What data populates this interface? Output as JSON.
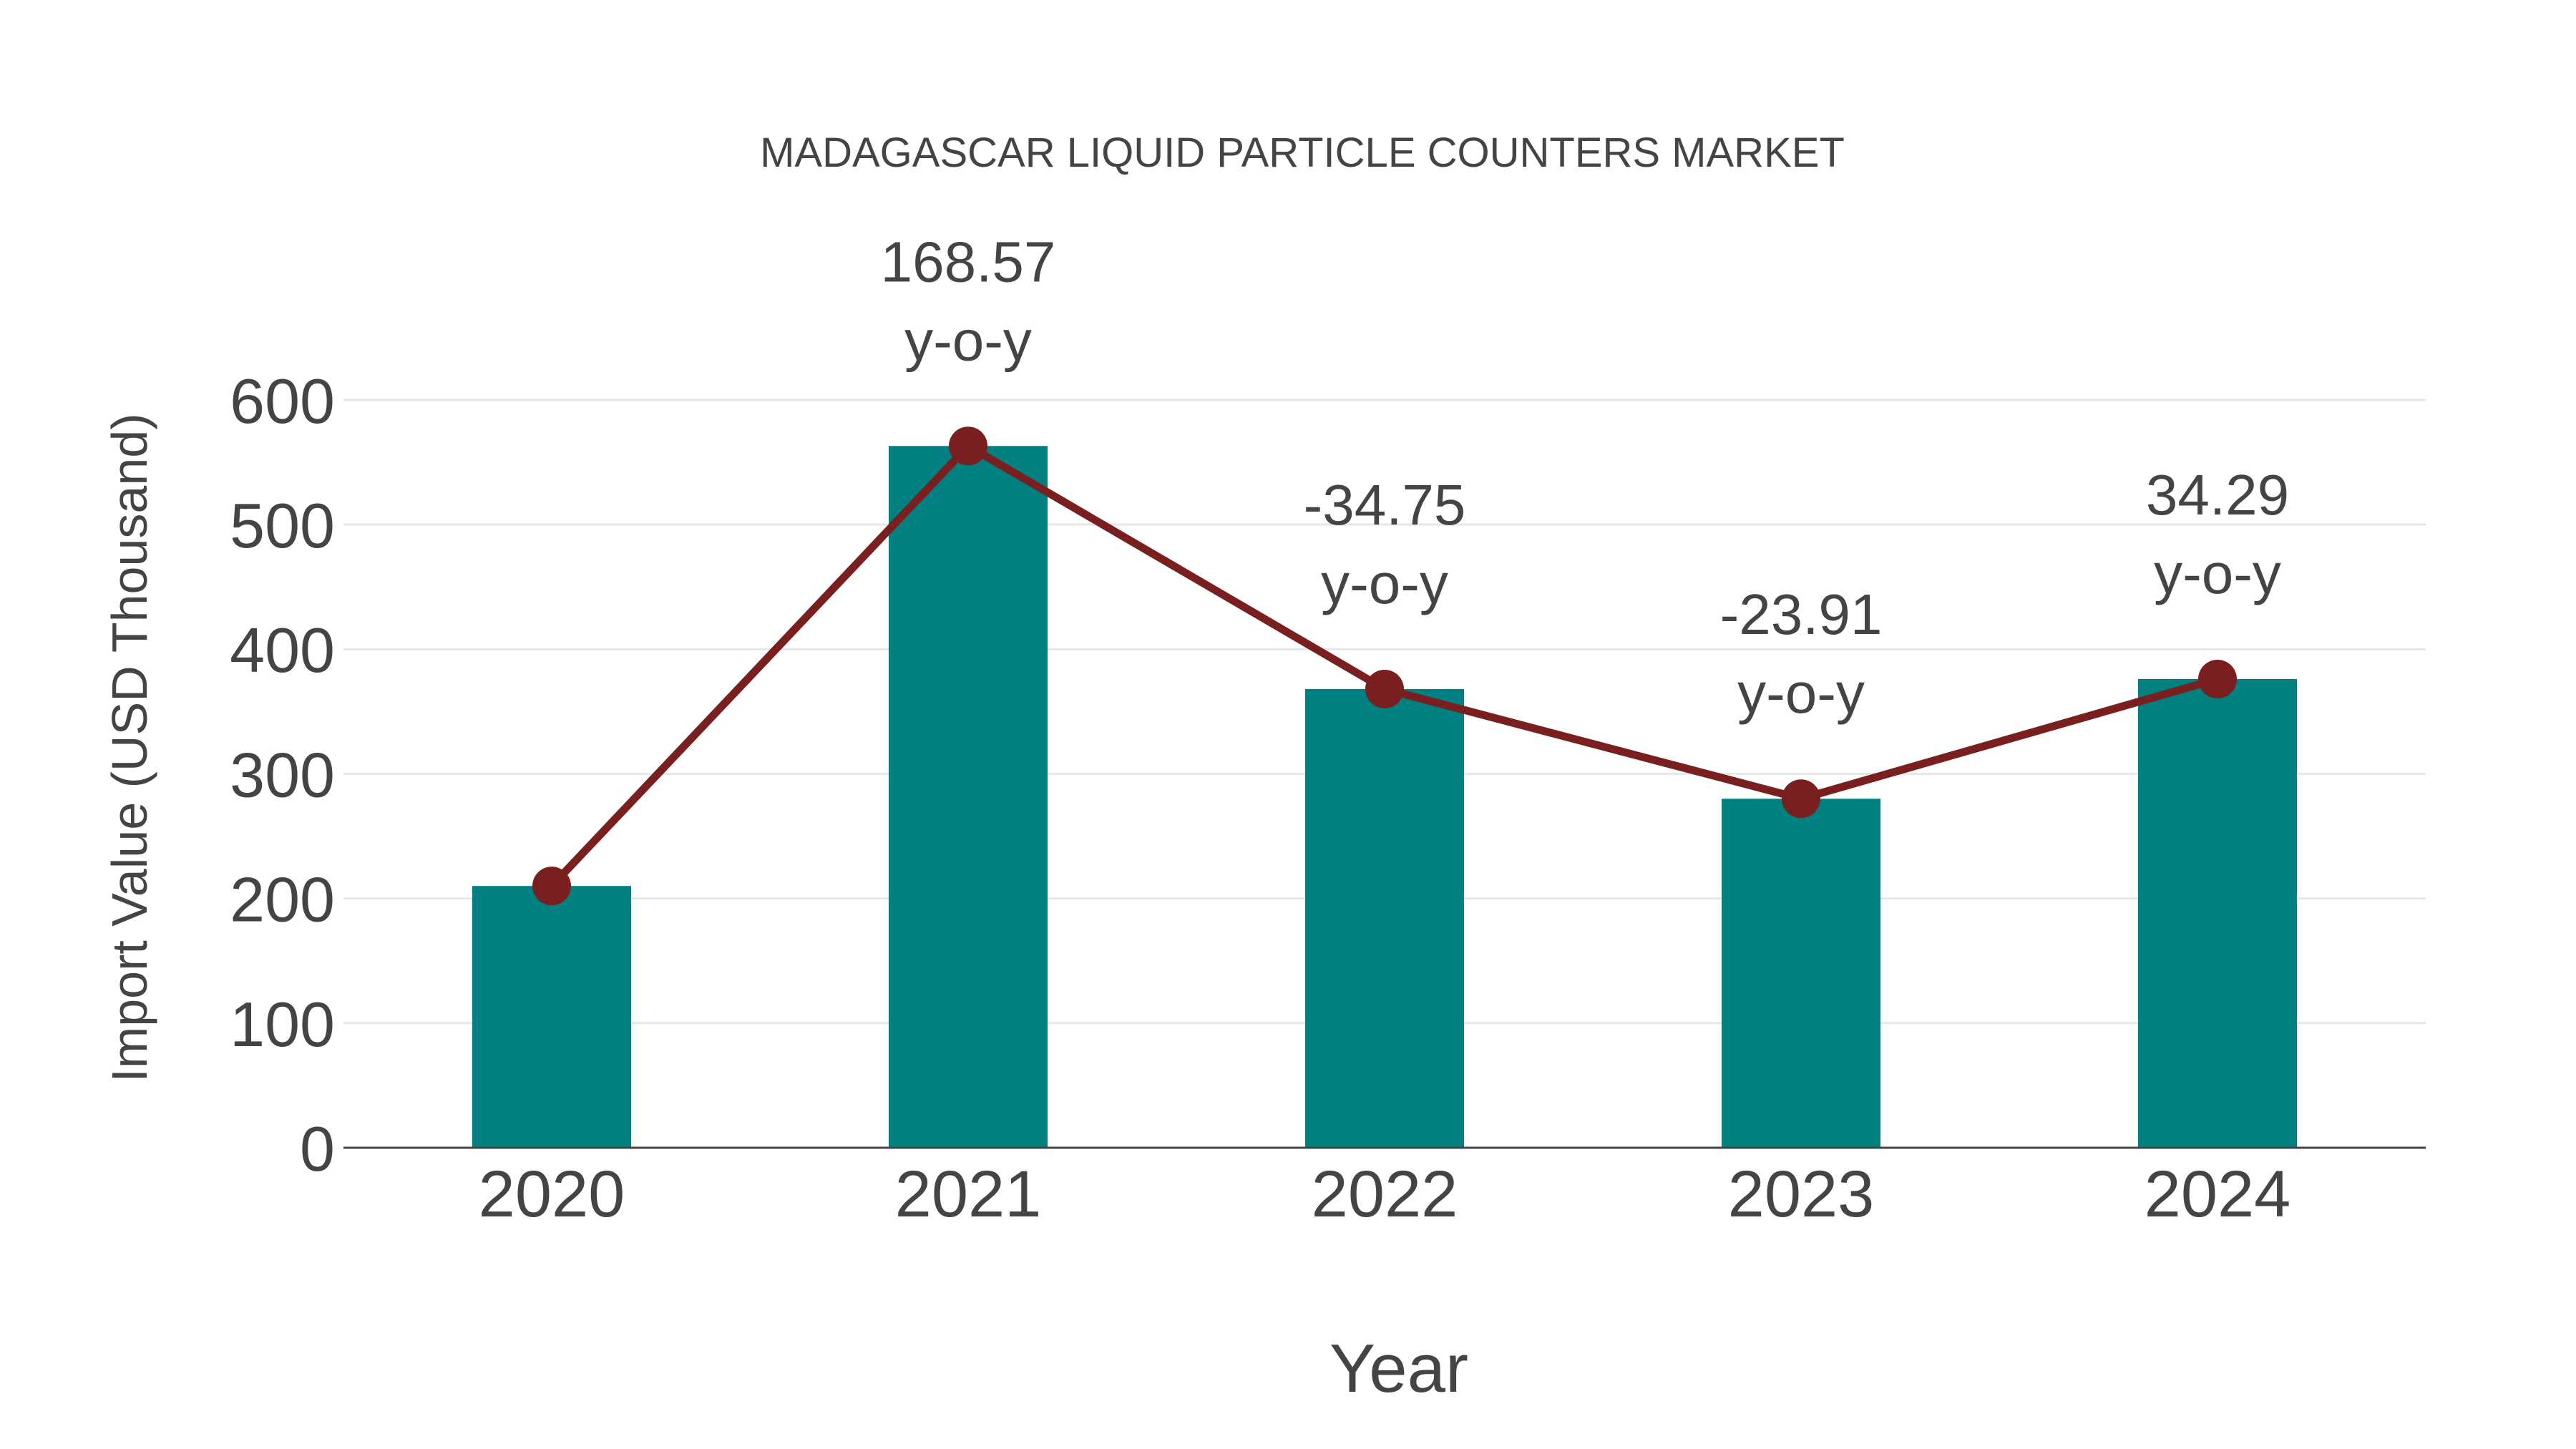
{
  "chart_data": {
    "type": "bar",
    "title": "MADAGASCAR LIQUID PARTICLE COUNTERS MARKET",
    "xlabel": "Year",
    "ylabel": "Import Value (USD Thousand)",
    "categories": [
      "2020",
      "2021",
      "2022",
      "2023",
      "2024"
    ],
    "series": [
      {
        "name": "Import Value",
        "type": "bar",
        "color": "#008080",
        "values": [
          210,
          563,
          368,
          280,
          376
        ]
      },
      {
        "name": "Trend",
        "type": "line",
        "color": "#7a1f1f",
        "values": [
          210,
          563,
          368,
          280,
          376
        ]
      }
    ],
    "annotations": [
      {
        "category": "2021",
        "value": "168.57",
        "suffix": "y-o-y"
      },
      {
        "category": "2022",
        "value": "-34.75",
        "suffix": "y-o-y"
      },
      {
        "category": "2023",
        "value": "-23.91",
        "suffix": "y-o-y"
      },
      {
        "category": "2024",
        "value": "34.29",
        "suffix": "y-o-y"
      }
    ],
    "yticks": [
      "0",
      "100",
      "200",
      "300",
      "400",
      "500",
      "600"
    ],
    "ylim": [
      0,
      600
    ],
    "grid": true,
    "legend": "none"
  }
}
